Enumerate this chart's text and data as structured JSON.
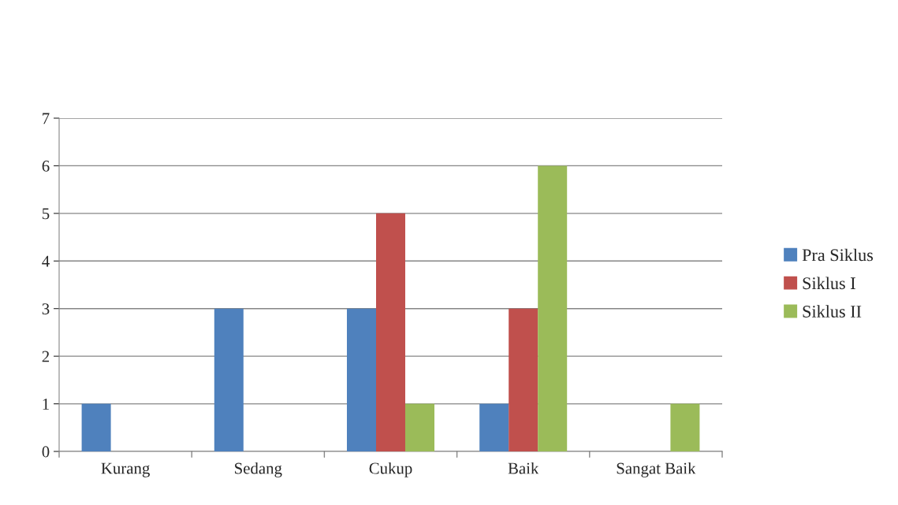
{
  "chart_data": {
    "type": "bar",
    "categories": [
      "Kurang",
      "Sedang",
      "Cukup",
      "Baik",
      "Sangat Baik"
    ],
    "series": [
      {
        "name": "Pra Siklus",
        "color": "#4f81bd",
        "values": [
          1,
          3,
          3,
          1,
          null
        ]
      },
      {
        "name": "Siklus I",
        "color": "#c0504d",
        "values": [
          null,
          null,
          5,
          3,
          null
        ]
      },
      {
        "name": "Siklus II",
        "color": "#9bbb59",
        "values": [
          null,
          null,
          1,
          6,
          1
        ]
      }
    ],
    "ylim": [
      0,
      7
    ],
    "yticks": [
      0,
      1,
      2,
      3,
      4,
      5,
      6,
      7
    ],
    "grid": "y",
    "legend": "right"
  }
}
